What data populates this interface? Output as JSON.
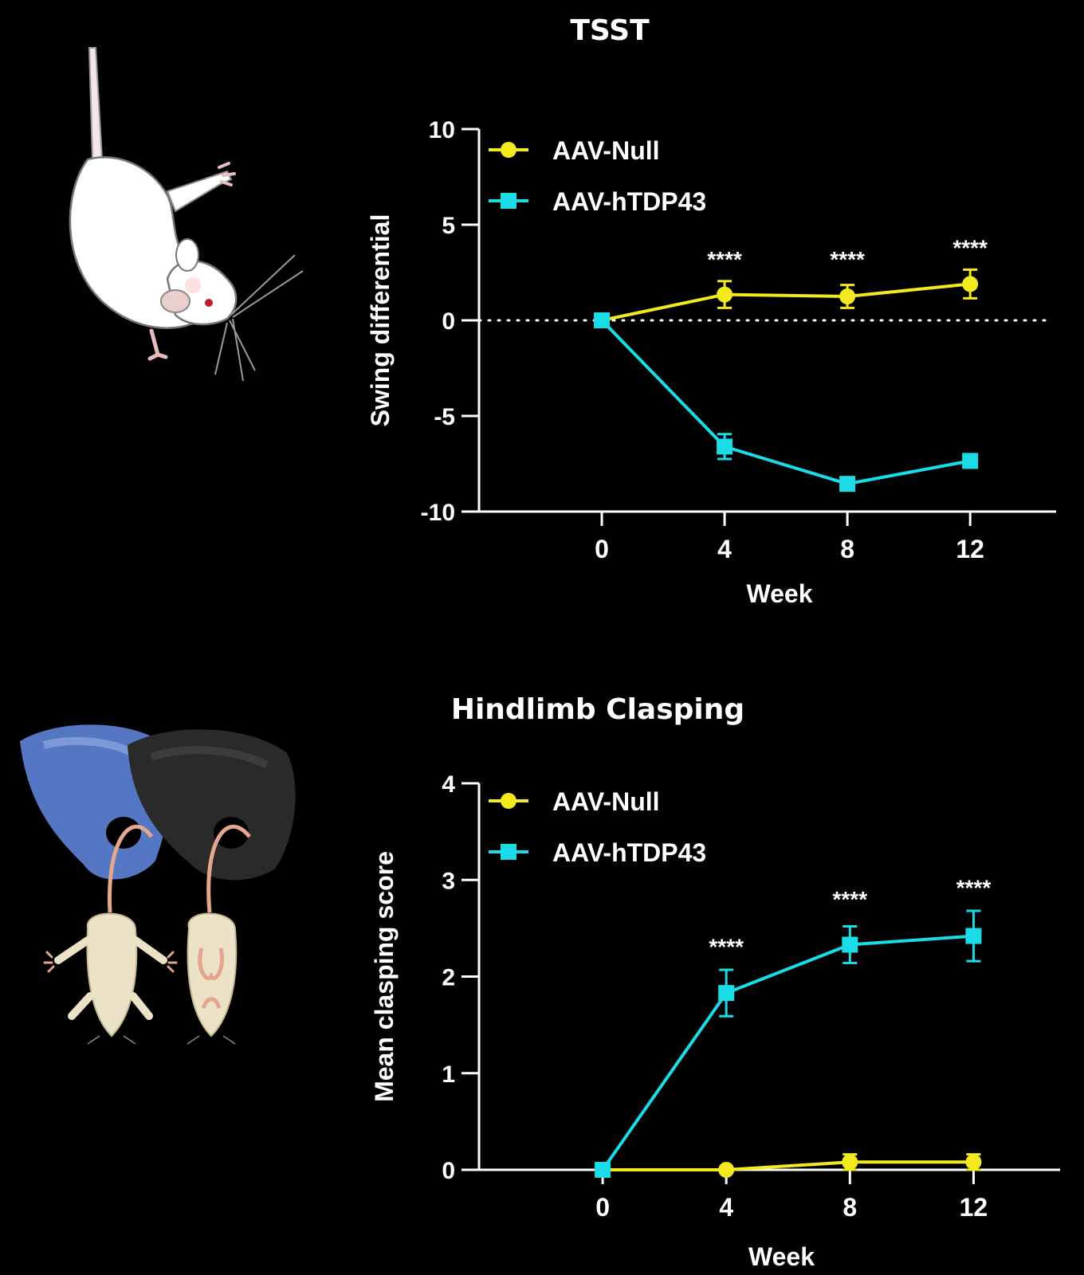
{
  "colors": {
    "background": "#000000",
    "null": "#f2ea1e",
    "tdp": "#19dce6",
    "axis": "#ffffff"
  },
  "illustrations": [
    {
      "name": "mouse-tail-suspension-icon"
    },
    {
      "name": "gloved-hands-holding-mice-icon"
    }
  ],
  "chart_data": [
    {
      "type": "line",
      "title": "TSST",
      "xlabel": "Week",
      "ylabel": "Swing differential",
      "x": [
        0,
        4,
        8,
        12
      ],
      "xticks": [
        "0",
        "4",
        "8",
        "12"
      ],
      "xlim": [
        -4,
        14.8
      ],
      "ylim": [
        -10,
        10
      ],
      "yticks": [
        "10",
        "5",
        "0",
        "-5",
        "-10"
      ],
      "ytick_values": [
        10,
        5,
        0,
        -5,
        -10
      ],
      "reference_line": {
        "y": 0,
        "style": "dotted"
      },
      "legend_position": "top-left",
      "series": [
        {
          "name": "AAV-Null",
          "marker": "circle",
          "color": "#f2ea1e",
          "values": [
            0,
            1.35,
            1.25,
            1.9
          ],
          "error": [
            0,
            0.7,
            0.6,
            0.75
          ]
        },
        {
          "name": "AAV-hTDP43",
          "marker": "square",
          "color": "#19dce6",
          "values": [
            0,
            -6.6,
            -8.55,
            -7.35
          ],
          "error": [
            0,
            0.65,
            0.25,
            0.35
          ]
        }
      ],
      "annotations": [
        {
          "x": 4,
          "y": 2.8,
          "text": "****"
        },
        {
          "x": 8,
          "y": 2.8,
          "text": "****"
        },
        {
          "x": 12,
          "y": 3.4,
          "text": "****"
        }
      ]
    },
    {
      "type": "line",
      "title": "Hindlimb Clasping",
      "xlabel": "Week",
      "ylabel": "Mean clasping score",
      "x": [
        0,
        4,
        8,
        12
      ],
      "xticks": [
        "0",
        "4",
        "8",
        "12"
      ],
      "xlim": [
        -4,
        14.8
      ],
      "ylim": [
        0,
        4
      ],
      "yticks": [
        "4",
        "3",
        "2",
        "1",
        "0"
      ],
      "ytick_values": [
        4,
        3,
        2,
        1,
        0
      ],
      "legend_position": "top-left",
      "series": [
        {
          "name": "AAV-Null",
          "marker": "circle",
          "color": "#f2ea1e",
          "values": [
            0,
            0,
            0.08,
            0.08
          ],
          "error": [
            0,
            0,
            0.08,
            0.08
          ]
        },
        {
          "name": "AAV-hTDP43",
          "marker": "square",
          "color": "#19dce6",
          "values": [
            0,
            1.83,
            2.33,
            2.42
          ],
          "error": [
            0,
            0.24,
            0.19,
            0.26
          ]
        }
      ],
      "annotations": [
        {
          "x": 4,
          "y": 2.23,
          "text": "****"
        },
        {
          "x": 8,
          "y": 2.72,
          "text": "****"
        },
        {
          "x": 12,
          "y": 2.84,
          "text": "****"
        }
      ]
    }
  ]
}
